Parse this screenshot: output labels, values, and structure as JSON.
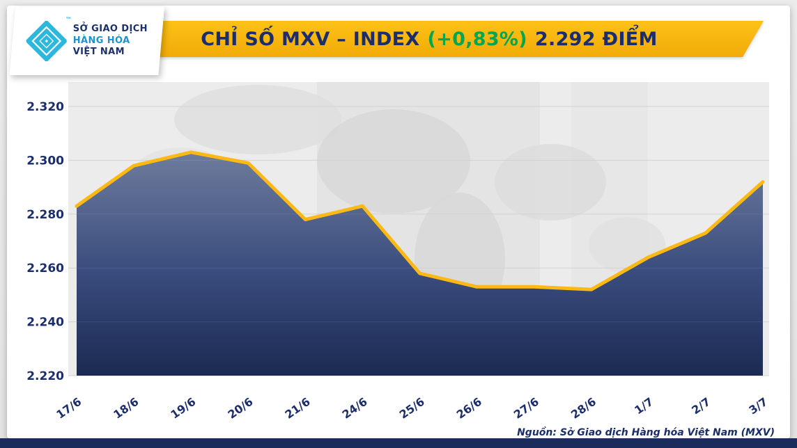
{
  "header": {
    "title_main": "CHỈ SỐ MXV – INDEX",
    "title_change": "(+0,83%)",
    "title_value": "2.292 ĐIỂM"
  },
  "logo": {
    "line1": "SỞ GIAO DỊCH",
    "line2": "HÀNG HÓA",
    "line3": "VIỆT NAM",
    "tm": "™"
  },
  "source": "Nguồn: Sở Giao dịch Hàng hóa Việt Nam (MXV)",
  "colors": {
    "banner_yellow": "#F7B60E",
    "navy": "#1B2D6B",
    "green": "#00A651",
    "logo_cyan": "#2BB8DC",
    "footer_navy": "#1B2B5C"
  },
  "chart_data": {
    "type": "area",
    "title": "CHỈ SỐ MXV – INDEX (+0,83%) 2.292 ĐIỂM",
    "categories": [
      "17/6",
      "18/6",
      "19/6",
      "20/6",
      "21/6",
      "24/6",
      "25/6",
      "26/6",
      "27/6",
      "28/6",
      "1/7",
      "2/7",
      "3/7"
    ],
    "values": [
      2283,
      2298,
      2303,
      2299,
      2278,
      2283,
      2258,
      2253,
      2253,
      2252,
      2264,
      2273,
      2292
    ],
    "ylim": [
      2220,
      2320
    ],
    "y_ticks": [
      2320,
      2300,
      2280,
      2260,
      2240,
      2220
    ],
    "y_tick_labels": [
      "2.320",
      "2.300",
      "2.280",
      "2.260",
      "2.240",
      "2.220"
    ],
    "xlabel": "",
    "ylabel": "",
    "grid": true,
    "legend": "none",
    "line_color": "#FDB913",
    "area_top": "#6F7E9D",
    "area_mid": "#3A4C7E",
    "area_bottom": "#1B2A52"
  }
}
